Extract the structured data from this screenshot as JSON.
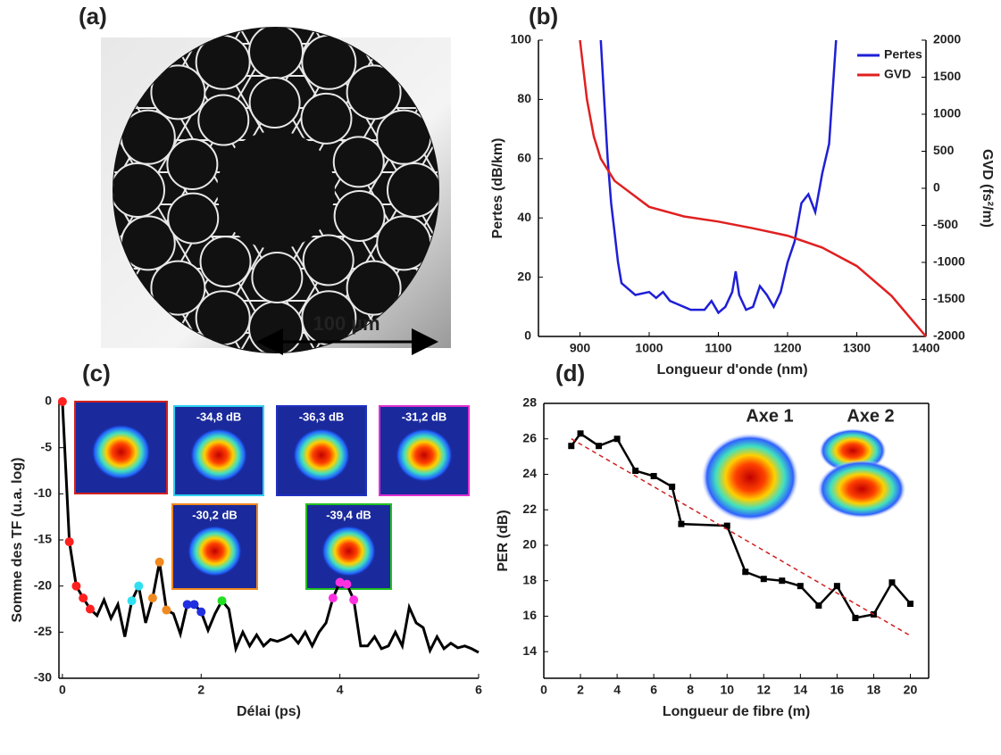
{
  "image_panel": {
    "panel_label": "(a)",
    "scale_bar": "100 µm"
  },
  "chart_data": [
    {
      "type": "line",
      "panel_label": "(b)",
      "x_label": "Longueur d'onde (nm)",
      "y_label": "Pertes (dB/km)",
      "y2_label": "GVD (fs²/m)",
      "xlim": [
        840,
        1400
      ],
      "xticks": [
        900,
        1000,
        1100,
        1200,
        1300,
        1400
      ],
      "ylim": [
        0,
        100
      ],
      "yticks": [
        0,
        20,
        40,
        60,
        80,
        100
      ],
      "y2lim": [
        -2000,
        2000
      ],
      "y2ticks": [
        -2000,
        -1500,
        -1000,
        -500,
        0,
        500,
        1000,
        1500,
        2000
      ],
      "legend": "top-right",
      "frame": "open",
      "series": [
        {
          "name": "Pertes",
          "color": "#1f1fd6",
          "x": [
            930,
            935,
            940,
            945,
            950,
            955,
            960,
            970,
            980,
            1000,
            1010,
            1020,
            1030,
            1040,
            1050,
            1060,
            1070,
            1080,
            1090,
            1100,
            1110,
            1120,
            1125,
            1130,
            1140,
            1150,
            1160,
            1170,
            1180,
            1190,
            1200,
            1210,
            1220,
            1230,
            1240,
            1250,
            1260,
            1270
          ],
          "values": [
            100,
            80,
            60,
            45,
            35,
            25,
            18,
            16,
            14,
            15,
            13,
            15,
            12,
            11,
            10,
            9,
            9,
            9,
            12,
            8,
            10,
            15,
            22,
            14,
            9,
            10,
            17,
            14,
            10,
            15,
            25,
            32,
            45,
            48,
            42,
            55,
            65,
            100
          ]
        },
        {
          "name": "GVD",
          "color": "#e02020",
          "axis": "y2",
          "x": [
            900,
            910,
            920,
            930,
            950,
            1000,
            1050,
            1100,
            1150,
            1200,
            1250,
            1300,
            1350,
            1400
          ],
          "values": [
            2000,
            1200,
            700,
            400,
            100,
            -250,
            -380,
            -450,
            -540,
            -640,
            -800,
            -1050,
            -1450,
            -2000
          ]
        }
      ]
    },
    {
      "type": "line",
      "panel_label": "(c)",
      "x_label": "Délai (ps)",
      "y_label": "Somme des TF (u.a. log)",
      "xlim": [
        -0.05,
        6
      ],
      "xticks": [
        0,
        2,
        4,
        6
      ],
      "ylim": [
        -30,
        0
      ],
      "yticks": [
        -30,
        -25,
        -20,
        -15,
        -10,
        -5,
        0
      ],
      "frame": "open",
      "series": [
        {
          "color": "#000000",
          "x": [
            0,
            0.1,
            0.2,
            0.3,
            0.4,
            0.5,
            0.6,
            0.7,
            0.8,
            0.9,
            1.0,
            1.1,
            1.2,
            1.3,
            1.4,
            1.5,
            1.6,
            1.7,
            1.8,
            1.9,
            2.0,
            2.1,
            2.2,
            2.3,
            2.4,
            2.5,
            2.6,
            2.7,
            2.8,
            2.9,
            3.0,
            3.1,
            3.2,
            3.3,
            3.4,
            3.5,
            3.6,
            3.7,
            3.8,
            3.9,
            4.0,
            4.1,
            4.2,
            4.3,
            4.4,
            4.5,
            4.6,
            4.7,
            4.8,
            4.9,
            5.0,
            5.1,
            5.2,
            5.3,
            5.4,
            5.5,
            5.6,
            5.7,
            5.8,
            5.9,
            6.0
          ],
          "values": [
            0,
            -15.2,
            -20,
            -21.3,
            -22.5,
            -23.2,
            -21.5,
            -23.5,
            -22,
            -25.5,
            -21.6,
            -20,
            -24,
            -21.3,
            -17.4,
            -22.6,
            -23,
            -25.2,
            -22,
            -22,
            -22.8,
            -24.8,
            -23,
            -21.6,
            -22.5,
            -26.8,
            -25,
            -26.5,
            -25.3,
            -26.5,
            -25.8,
            -26,
            -25.7,
            -25.3,
            -26.2,
            -25,
            -26.5,
            -25,
            -24,
            -21.3,
            -19.6,
            -19.8,
            -21.5,
            -26.5,
            -26.5,
            -25.5,
            -26.8,
            -26.5,
            -25,
            -26.5,
            -22.3,
            -24,
            -24.5,
            -27,
            -25.5,
            -26.8,
            -26.2,
            -26.7,
            -26.5,
            -26.8,
            -27.2
          ],
          "marker_colors": [
            "#ff2020",
            "#ff2020",
            "#ff2020",
            "#ff2020",
            "#ff2020",
            null,
            null,
            null,
            null,
            null,
            "#30e0f0",
            "#30e0f0",
            null,
            "#f08a20",
            "#f08a20",
            "#f08a20",
            null,
            null,
            "#2030e0",
            "#2030e0",
            "#2030e0",
            null,
            null,
            "#20e020",
            null,
            null,
            null,
            null,
            null,
            null,
            null,
            null,
            null,
            null,
            null,
            null,
            null,
            null,
            null,
            "#ff30e0",
            "#ff30e0",
            "#ff30e0",
            "#ff30e0",
            null,
            null,
            null,
            null,
            null,
            null,
            null,
            null,
            null,
            null,
            null,
            null,
            null,
            null,
            null,
            null,
            null,
            null
          ]
        }
      ],
      "insets": [
        {
          "color": "#d02020"
        },
        {
          "color": "#30d0f0",
          "label": "-34,8 dB"
        },
        {
          "color": "#2030c0",
          "label": "-36,3 dB"
        },
        {
          "color": "#e030d0",
          "label": "-31,2 dB"
        },
        {
          "color": "#f08a20",
          "label": "-30,2 dB"
        },
        {
          "color": "#20c020",
          "label": "-39,4 dB"
        }
      ]
    },
    {
      "type": "line",
      "panel_label": "(d)",
      "x_label": "Longueur de fibre (m)",
      "y_label": "PER (dB)",
      "xlim": [
        0,
        21
      ],
      "xticks": [
        0,
        2,
        4,
        6,
        8,
        10,
        12,
        14,
        16,
        18,
        20
      ],
      "ylim": [
        12.5,
        28
      ],
      "yticks": [
        14,
        16,
        18,
        20,
        22,
        24,
        26,
        28
      ],
      "frame": "box",
      "annotations": [
        "Axe 1",
        "Axe 2"
      ],
      "series": [
        {
          "color": "#000000",
          "marker": "square",
          "x": [
            1.5,
            2,
            3,
            4,
            5,
            6,
            7,
            7.5,
            10,
            11,
            12,
            13,
            14,
            15,
            16,
            17,
            18,
            19,
            20
          ],
          "values": [
            25.6,
            26.3,
            25.6,
            26,
            24.2,
            23.9,
            23.3,
            21.2,
            21.1,
            18.5,
            18.1,
            18,
            17.7,
            16.6,
            17.7,
            15.9,
            16.1,
            17.9,
            16.7
          ]
        },
        {
          "color": "#d02020",
          "style": "dashed",
          "x": [
            1.5,
            20
          ],
          "values": [
            26,
            14.9
          ]
        }
      ]
    }
  ]
}
